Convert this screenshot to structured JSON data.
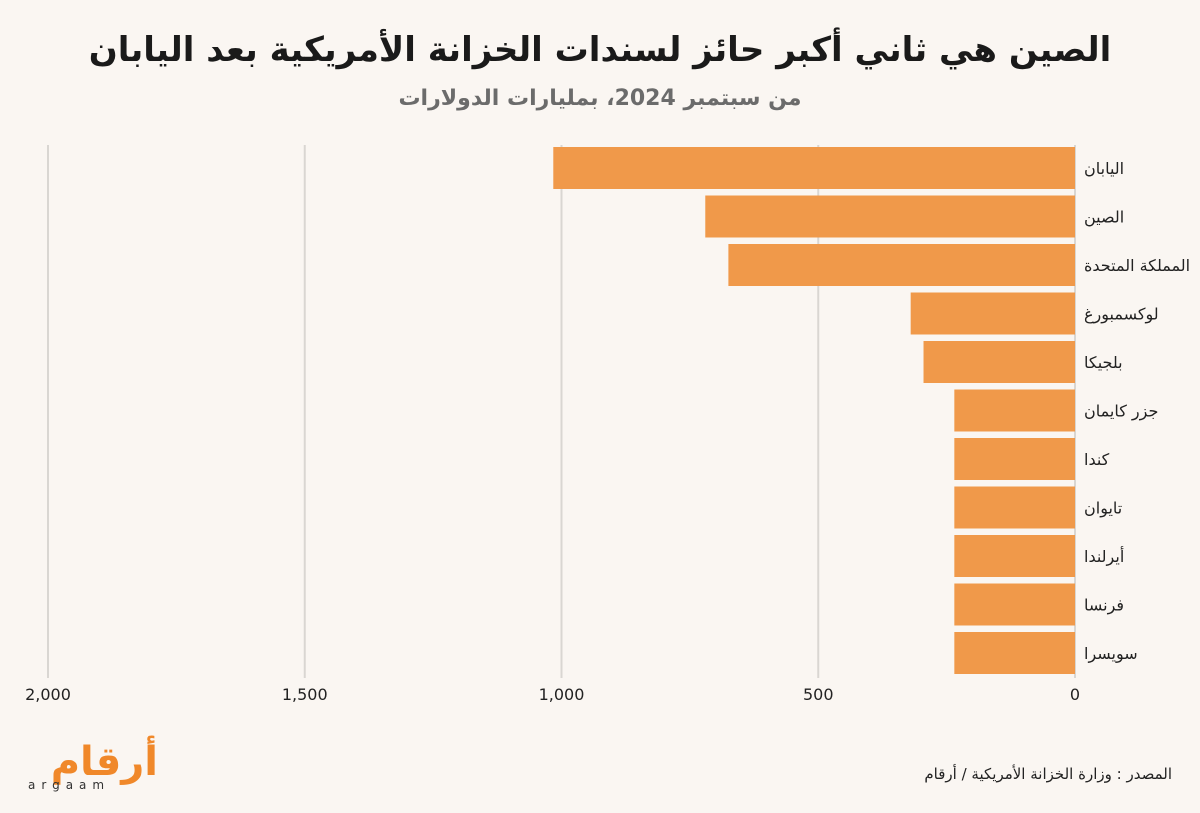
{
  "chart_data": {
    "type": "bar",
    "orientation": "horizontal",
    "title": "الصين هي ثاني أكبر حائز لسندات الخزانة الأمريكية بعد اليابان",
    "subtitle": "من سبتمبر 2024، بمليارات الدولارات",
    "categories": [
      "اليابان",
      "الصين",
      "المملكة المتحدة",
      "لوكسمبورغ",
      "بلجيكا",
      "جزر كايمان",
      "كندا",
      "تايوان",
      "أيرلندا",
      "فرنسا",
      "سويسرا"
    ],
    "values": [
      1016,
      720,
      675,
      320,
      295,
      235,
      235,
      235,
      235,
      235,
      235
    ],
    "xlim": [
      0,
      2000
    ],
    "xticks": [
      0,
      500,
      1000,
      1500,
      2000
    ],
    "xtick_labels": [
      "0",
      "500",
      "1,000",
      "1,500",
      "2,000"
    ],
    "axis_direction": "reversed",
    "grid": true,
    "bar_color": "#f0994a",
    "gridline_color": "#d9d6d2"
  },
  "logo": {
    "arabic": "أرقام",
    "latin": "argaam",
    "color": "#f0882a"
  },
  "source": {
    "label": "المصدر :",
    "text": "وزارة الخزانة الأمريكية / أرقام"
  }
}
